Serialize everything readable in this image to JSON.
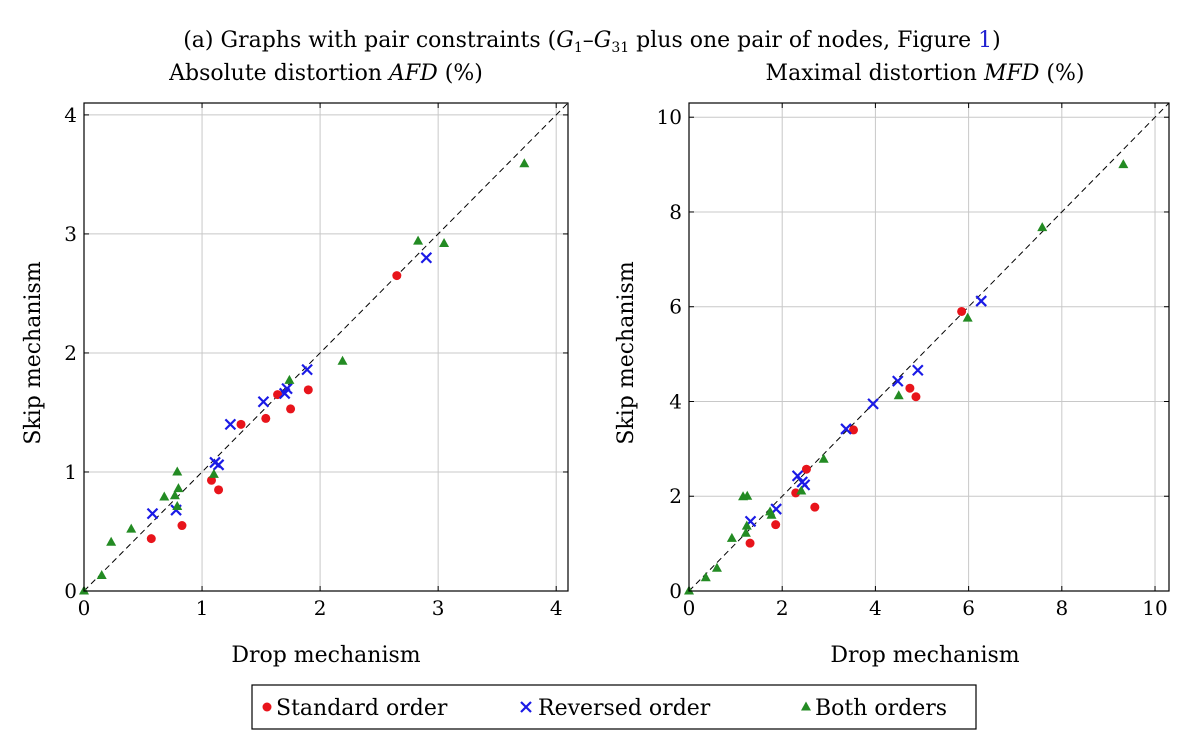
{
  "caption": {
    "prefix": "(a) Graphs with pair constraints (",
    "g": "G",
    "sub_start": "1",
    "dash": "–",
    "sub_end": "31",
    "suffix": " plus one pair of nodes, Figure ",
    "ref": "1",
    "close": ")"
  },
  "legend": {
    "items": [
      {
        "label": "Standard order",
        "marker": "circle",
        "color": "#e8141b"
      },
      {
        "label": "Reversed order",
        "marker": "cross",
        "color": "#1a1ae6"
      },
      {
        "label": "Both orders",
        "marker": "triangle",
        "color": "#238b23"
      }
    ]
  },
  "chart_data": [
    {
      "type": "scatter",
      "title_plain": "Absolute distortion ",
      "title_italic": "AFD",
      "title_unit": " (%)",
      "xlabel": "Drop mechanism",
      "ylabel": "Skip mechanism",
      "xlim": [
        0,
        4.1
      ],
      "ylim": [
        0,
        4.1
      ],
      "ticks": [
        0,
        1,
        2,
        3,
        4
      ],
      "grid": true,
      "diagonal": true,
      "series": [
        {
          "name": "Standard order",
          "marker": "circle",
          "color": "#e8141b",
          "points": [
            [
              0.57,
              0.44
            ],
            [
              0.83,
              0.55
            ],
            [
              1.08,
              0.93
            ],
            [
              1.14,
              0.85
            ],
            [
              1.33,
              1.4
            ],
            [
              1.54,
              1.45
            ],
            [
              1.64,
              1.65
            ],
            [
              1.75,
              1.53
            ],
            [
              1.9,
              1.69
            ],
            [
              2.65,
              2.65
            ]
          ]
        },
        {
          "name": "Reversed order",
          "marker": "cross",
          "color": "#1a1ae6",
          "points": [
            [
              0.58,
              0.65
            ],
            [
              0.78,
              0.68
            ],
            [
              1.11,
              1.08
            ],
            [
              1.14,
              1.06
            ],
            [
              1.24,
              1.4
            ],
            [
              1.52,
              1.59
            ],
            [
              1.7,
              1.66
            ],
            [
              1.72,
              1.7
            ],
            [
              1.89,
              1.86
            ],
            [
              2.9,
              2.8
            ]
          ]
        },
        {
          "name": "Both orders",
          "marker": "triangle",
          "color": "#238b23",
          "points": [
            [
              0,
              0
            ],
            [
              0.15,
              0.13
            ],
            [
              0.23,
              0.41
            ],
            [
              0.4,
              0.52
            ],
            [
              0.68,
              0.79
            ],
            [
              0.77,
              0.8
            ],
            [
              0.79,
              0.71
            ],
            [
              0.8,
              0.86
            ],
            [
              0.79,
              1.0
            ],
            [
              1.1,
              0.98
            ],
            [
              1.74,
              1.77
            ],
            [
              2.19,
              1.93
            ],
            [
              2.83,
              2.94
            ],
            [
              3.05,
              2.92
            ],
            [
              3.73,
              3.59
            ]
          ]
        }
      ]
    },
    {
      "type": "scatter",
      "title_plain": "Maximal distortion ",
      "title_italic": "MFD",
      "title_unit": " (%)",
      "xlabel": "Drop mechanism",
      "ylabel": "Skip mechanism",
      "xlim": [
        0,
        10.3
      ],
      "ylim": [
        0,
        10.3
      ],
      "ticks": [
        0,
        2,
        4,
        6,
        8,
        10
      ],
      "grid": true,
      "diagonal": true,
      "series": [
        {
          "name": "Standard order",
          "marker": "circle",
          "color": "#e8141b",
          "points": [
            [
              1.31,
              1.01
            ],
            [
              1.86,
              1.4
            ],
            [
              2.29,
              2.07
            ],
            [
              2.52,
              2.57
            ],
            [
              2.7,
              1.77
            ],
            [
              3.53,
              3.4
            ],
            [
              4.74,
              4.28
            ],
            [
              4.87,
              4.1
            ],
            [
              5.85,
              5.9
            ]
          ]
        },
        {
          "name": "Reversed order",
          "marker": "cross",
          "color": "#1a1ae6",
          "points": [
            [
              1.32,
              1.47
            ],
            [
              1.87,
              1.73
            ],
            [
              2.33,
              2.43
            ],
            [
              2.43,
              2.3
            ],
            [
              2.48,
              2.24
            ],
            [
              3.37,
              3.42
            ],
            [
              3.95,
              3.95
            ],
            [
              4.48,
              4.43
            ],
            [
              4.91,
              4.66
            ],
            [
              6.27,
              6.12
            ]
          ]
        },
        {
          "name": "Both orders",
          "marker": "triangle",
          "color": "#238b23",
          "points": [
            [
              0,
              0
            ],
            [
              0.36,
              0.28
            ],
            [
              0.6,
              0.48
            ],
            [
              0.92,
              1.11
            ],
            [
              1.16,
              1.99
            ],
            [
              1.25,
              2.0
            ],
            [
              1.24,
              1.37
            ],
            [
              1.22,
              1.22
            ],
            [
              1.74,
              1.67
            ],
            [
              1.77,
              1.6
            ],
            [
              2.41,
              2.11
            ],
            [
              2.89,
              2.78
            ],
            [
              4.5,
              4.12
            ],
            [
              5.98,
              5.76
            ],
            [
              7.58,
              7.67
            ],
            [
              9.32,
              9.0
            ]
          ]
        }
      ]
    }
  ]
}
